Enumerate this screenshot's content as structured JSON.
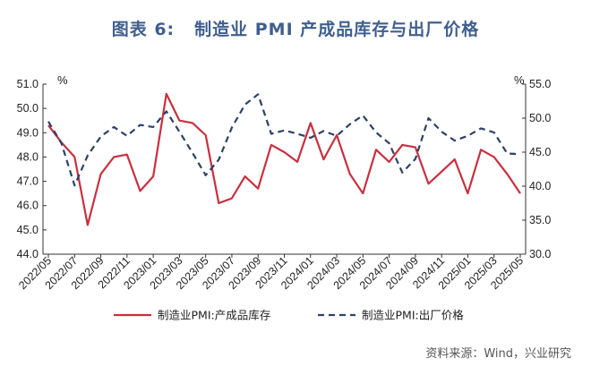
{
  "figure": {
    "label": "图表 6:",
    "title": "制造业 PMI 产成品库存与出厂价格",
    "source": "资料来源：Wind，兴业研究"
  },
  "chart_data": {
    "type": "line",
    "left_unit": "%",
    "right_unit": "%",
    "left_ylim": [
      44.0,
      51.0
    ],
    "right_ylim": [
      30.0,
      55.0
    ],
    "left_ticks": [
      "44.0",
      "45.0",
      "46.0",
      "47.0",
      "48.0",
      "49.0",
      "50.0",
      "51.0"
    ],
    "right_ticks": [
      "30.0",
      "35.0",
      "40.0",
      "45.0",
      "50.0",
      "55.0"
    ],
    "x": [
      "2022/05",
      "2022/06",
      "2022/07",
      "2022/08",
      "2022/09",
      "2022/10",
      "2022/11",
      "2022/12",
      "2023/01",
      "2023/02",
      "2023/03",
      "2023/04",
      "2023/05",
      "2023/06",
      "2023/07",
      "2023/08",
      "2023/09",
      "2023/10",
      "2023/11",
      "2023/12",
      "2024/01",
      "2024/02",
      "2024/03",
      "2024/04",
      "2024/05",
      "2024/06",
      "2024/07",
      "2024/08",
      "2024/09",
      "2024/10",
      "2024/11",
      "2024/12",
      "2025/01",
      "2025/02",
      "2025/03",
      "2025/04",
      "2025/05"
    ],
    "x_tick_labels": [
      "2022/05",
      "2022/07",
      "2022/09",
      "2022/11",
      "2023/01",
      "2023/03",
      "2023/05",
      "2023/07",
      "2023/09",
      "2023/11",
      "2024/01",
      "2024/03",
      "2024/05",
      "2024/07",
      "2024/09",
      "2024/11",
      "2025/01",
      "2025/03",
      "2025/05"
    ],
    "grid": false,
    "legend_position": "bottom",
    "series": [
      {
        "name": "制造业PMI:产成品库存",
        "axis": "left",
        "style": "solid",
        "color": "#c8303f",
        "values": [
          49.3,
          48.6,
          48.0,
          45.2,
          47.3,
          48.0,
          48.1,
          46.6,
          47.2,
          50.6,
          49.5,
          49.4,
          48.9,
          46.1,
          46.3,
          47.2,
          46.7,
          48.5,
          48.2,
          47.8,
          49.4,
          47.9,
          48.9,
          47.3,
          46.5,
          48.3,
          47.8,
          48.5,
          48.4,
          46.9,
          47.4,
          47.9,
          46.5,
          48.3,
          48.0,
          47.3,
          46.5
        ]
      },
      {
        "name": "制造业PMI:出厂价格",
        "axis": "right",
        "style": "dashed",
        "color": "#2c4268",
        "values": [
          49.5,
          46.3,
          40.1,
          44.5,
          47.3,
          48.7,
          47.4,
          49.0,
          48.7,
          51.0,
          48.0,
          44.9,
          41.6,
          43.9,
          48.6,
          52.0,
          53.5,
          47.7,
          48.2,
          47.7,
          47.1,
          48.1,
          47.4,
          49.1,
          50.4,
          47.9,
          46.3,
          42.0,
          44.0,
          50.0,
          48.0,
          46.7,
          47.4,
          48.5,
          47.9,
          44.8,
          44.7
        ]
      }
    ]
  }
}
